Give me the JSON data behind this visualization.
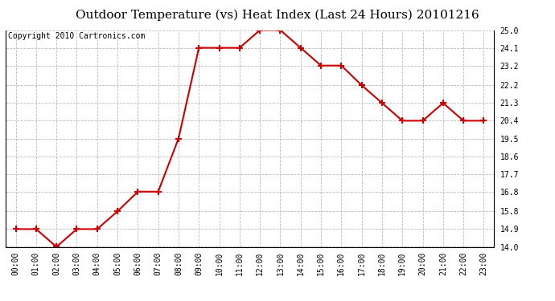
{
  "title": "Outdoor Temperature (vs) Heat Index (Last 24 Hours) 20101216",
  "copyright": "Copyright 2010 Cartronics.com",
  "x_labels": [
    "00:00",
    "01:00",
    "02:00",
    "03:00",
    "04:00",
    "05:00",
    "06:00",
    "07:00",
    "08:00",
    "09:00",
    "10:00",
    "11:00",
    "12:00",
    "13:00",
    "14:00",
    "15:00",
    "16:00",
    "17:00",
    "18:00",
    "19:00",
    "20:00",
    "21:00",
    "22:00",
    "23:00"
  ],
  "y_values": [
    14.9,
    14.9,
    14.0,
    14.9,
    14.9,
    15.8,
    16.8,
    16.8,
    19.5,
    24.1,
    24.1,
    24.1,
    25.0,
    25.0,
    24.1,
    23.2,
    23.2,
    22.2,
    21.3,
    20.4,
    20.4,
    21.3,
    20.4,
    20.4
  ],
  "line_color": "#cc0000",
  "marker": "+",
  "marker_color": "#cc0000",
  "marker_size": 6,
  "marker_linewidth": 1.5,
  "ylim_min": 14.0,
  "ylim_max": 25.0,
  "yticks": [
    14.0,
    14.9,
    15.8,
    16.8,
    17.7,
    18.6,
    19.5,
    20.4,
    21.3,
    22.2,
    23.2,
    24.1,
    25.0
  ],
  "background_color": "#ffffff",
  "grid_color": "#bbbbbb",
  "title_fontsize": 11,
  "tick_fontsize": 7,
  "copyright_fontsize": 7
}
